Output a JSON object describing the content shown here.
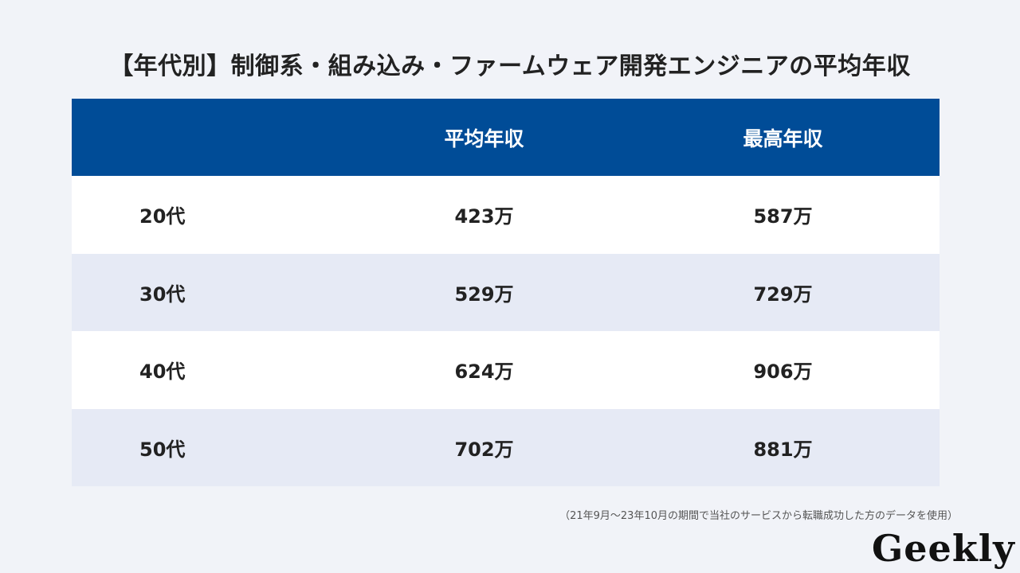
{
  "title": "【年代別】制御系・組み込み・ファームウェア開発エンジニアの平均年収",
  "note": "（21年9月〜23年10月の期間で当社のサービスから転職成功した方のデータを使用）",
  "logo": "Geekly",
  "colors": {
    "header_bg": "#004c97",
    "row_alt": "#e6eaf5",
    "page_bg": "#f1f3f8"
  },
  "chart_data": {
    "type": "table",
    "title": "【年代別】制御系・組み込み・ファームウェア開発エンジニアの平均年収",
    "columns": [
      "",
      "平均年収",
      "最高年収"
    ],
    "rows": [
      [
        "20代",
        "423万",
        "587万"
      ],
      [
        "30代",
        "529万",
        "729万"
      ],
      [
        "40代",
        "624万",
        "906万"
      ],
      [
        "50代",
        "702万",
        "881万"
      ]
    ]
  }
}
